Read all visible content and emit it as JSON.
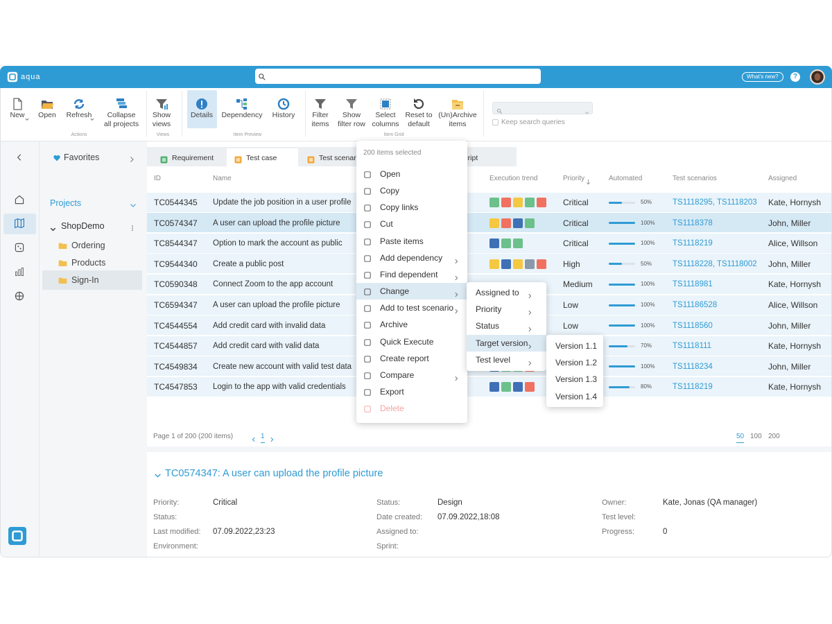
{
  "topbar": {
    "logo": "aqua",
    "whats_new": "What's new?",
    "help": "?"
  },
  "ribbon": {
    "groups": [
      {
        "label": "Actions",
        "buttons": [
          {
            "label": [
              "New"
            ]
          },
          {
            "label": [
              "Open"
            ]
          },
          {
            "label": [
              "Refresh"
            ]
          },
          {
            "label": [
              "Collapse",
              "all projects"
            ]
          }
        ]
      },
      {
        "label": "Views",
        "buttons": [
          {
            "label": [
              "Show",
              "views"
            ]
          }
        ]
      },
      {
        "label": "Item Preview",
        "buttons": [
          {
            "label": [
              "Details"
            ]
          },
          {
            "label": [
              "Dependency"
            ]
          },
          {
            "label": [
              "History"
            ]
          }
        ]
      },
      {
        "label": "Item Grid",
        "buttons": [
          {
            "label": [
              "Filter",
              "items"
            ]
          },
          {
            "label": [
              "Show",
              "filter row"
            ]
          },
          {
            "label": [
              "Select",
              "columns"
            ]
          },
          {
            "label": [
              "Reset to",
              "default"
            ]
          },
          {
            "label": [
              "(Un)Archive",
              "items"
            ]
          }
        ]
      }
    ],
    "keep_search": "Keep search queries"
  },
  "nav": {
    "favorites": "Favorites",
    "projects": "Projects",
    "project": "ShopDemo",
    "folders": [
      "Ordering",
      "Products",
      "Sign-In"
    ]
  },
  "tabs": [
    "Requirement",
    "Test case",
    "Test scenario",
    "Test script"
  ],
  "table": {
    "columns": [
      "ID",
      "Name",
      "Execution trend",
      "Priority",
      "Automated",
      "Test scenarios",
      "Assigned"
    ],
    "rows": [
      {
        "id": "TC0544345",
        "name": "Update the job position in a user profile",
        "trend": [
          "#6cc08b",
          "#f07160",
          "#f5c842",
          "#6cc08b",
          "#f07160"
        ],
        "priority": "Critical",
        "automated": 50,
        "automated_label": "50%",
        "scenarios": "TS1118295, TS1118203",
        "assigned": "Kate, Hornysh"
      },
      {
        "id": "TC0574347",
        "name": "A user can upload the profile picture",
        "trend": [
          "#f5c842",
          "#f07160",
          "#3f6fb5",
          "#6cc08b"
        ],
        "priority": "Critical",
        "automated": 100,
        "automated_label": "100%",
        "scenarios": "TS1118378",
        "assigned": "John, Miller"
      },
      {
        "id": "TC8544347",
        "name": "Option to mark the account as public",
        "trend": [
          "#3f6fb5",
          "#6cc08b",
          "#6cc08b"
        ],
        "priority": "Critical",
        "automated": 100,
        "automated_label": "100%",
        "scenarios": "TS1118219",
        "assigned": "Alice, Willson"
      },
      {
        "id": "TC9544340",
        "name": "Create a public post",
        "trend": [
          "#f5c842",
          "#3f6fb5",
          "#f5c842",
          "#8a9aab",
          "#f07160"
        ],
        "priority": "High",
        "automated": 50,
        "automated_label": "50%",
        "scenarios": "TS1118228, TS1118002",
        "assigned": "John, Miller"
      },
      {
        "id": "TC0590348",
        "name": "Connect Zoom to the app account",
        "priority": "Medium",
        "automated": 100,
        "automated_label": "100%",
        "scenarios": "TS1118981",
        "assigned": "Kate, Hornysh"
      },
      {
        "id": "TC6594347",
        "name": "A user can upload the profile picture",
        "priority": "Low",
        "automated": 100,
        "automated_label": "100%",
        "scenarios": "TS11186528",
        "assigned": "Alice, Willson"
      },
      {
        "id": "TC4544554",
        "name": "Add credit card with invalid data",
        "priority": "Low",
        "automated": 100,
        "automated_label": "100%",
        "scenarios": "TS1118560",
        "assigned": "John, Miller"
      },
      {
        "id": "TC4544857",
        "name": "Add credit card with valid data",
        "automated": 70,
        "automated_label": "70%",
        "scenarios": "TS1118111",
        "assigned": "Kate, Hornysh"
      },
      {
        "id": "TC4549834",
        "name": "Create new account with valid test data",
        "trend": [
          "#3f6fb5",
          "#6cc08b",
          "#6cc08b",
          "#f07160"
        ],
        "automated": 100,
        "automated_label": "100%",
        "scenarios": "TS1118234",
        "assigned": "John, Miller"
      },
      {
        "id": "TC4547853",
        "name": "Login to the app with valid credentials",
        "trend": [
          "#3f6fb5",
          "#6cc08b",
          "#3f6fb5",
          "#f07160"
        ],
        "automated": 80,
        "automated_label": "80%",
        "scenarios": "TS1118219",
        "assigned": "Kate, Hornysh"
      }
    ]
  },
  "pagination": {
    "summary": "Page 1 of 200 (200 items)",
    "page": 1,
    "sizes": [
      50,
      100,
      200
    ]
  },
  "context_menu": {
    "header": "200 items selected",
    "items": [
      {
        "label": "Open"
      },
      {
        "label": "Copy"
      },
      {
        "label": "Copy links"
      },
      {
        "label": "Cut"
      },
      {
        "label": "Paste items"
      },
      {
        "label": "Add dependency",
        "submenu": true
      },
      {
        "label": "Find  dependent",
        "submenu": true
      },
      {
        "label": "Change",
        "submenu": true
      },
      {
        "label": "Add to test scenario",
        "submenu": true
      },
      {
        "label": "Archive"
      },
      {
        "label": "Quick Execute"
      },
      {
        "label": "Create report"
      },
      {
        "label": "Compare",
        "submenu": true
      },
      {
        "label": "Export"
      },
      {
        "label": "Delete",
        "disabled": true
      }
    ],
    "submenu": [
      "Assigned to",
      "Priority",
      "Status",
      "Target version",
      "Test level"
    ],
    "versions": [
      "Version 1.1",
      "Version 1.2",
      "Version 1.3",
      "Version 1.4"
    ]
  },
  "detail": {
    "title": "TC0574347: A user can upload the profile picture",
    "fields": [
      [
        {
          "label": "Priority:",
          "value": "Critical"
        },
        {
          "label": "Status:"
        },
        {
          "label": "Last modified:",
          "value": "07.09.2022,23:23"
        },
        {
          "label": "Environment:"
        }
      ],
      [
        {
          "label": "Status:",
          "value": "Design"
        },
        {
          "label": "Date created:",
          "value": "07.09.2022,18:08"
        },
        {
          "label": "Assigned to:"
        },
        {
          "label": "Sprint:"
        }
      ],
      [
        {
          "label": "Owner:",
          "value": "Kate, Jonas (QA manager)"
        },
        {
          "label": "Test level:"
        },
        {
          "label": "Progress:",
          "value": 0
        }
      ]
    ]
  }
}
